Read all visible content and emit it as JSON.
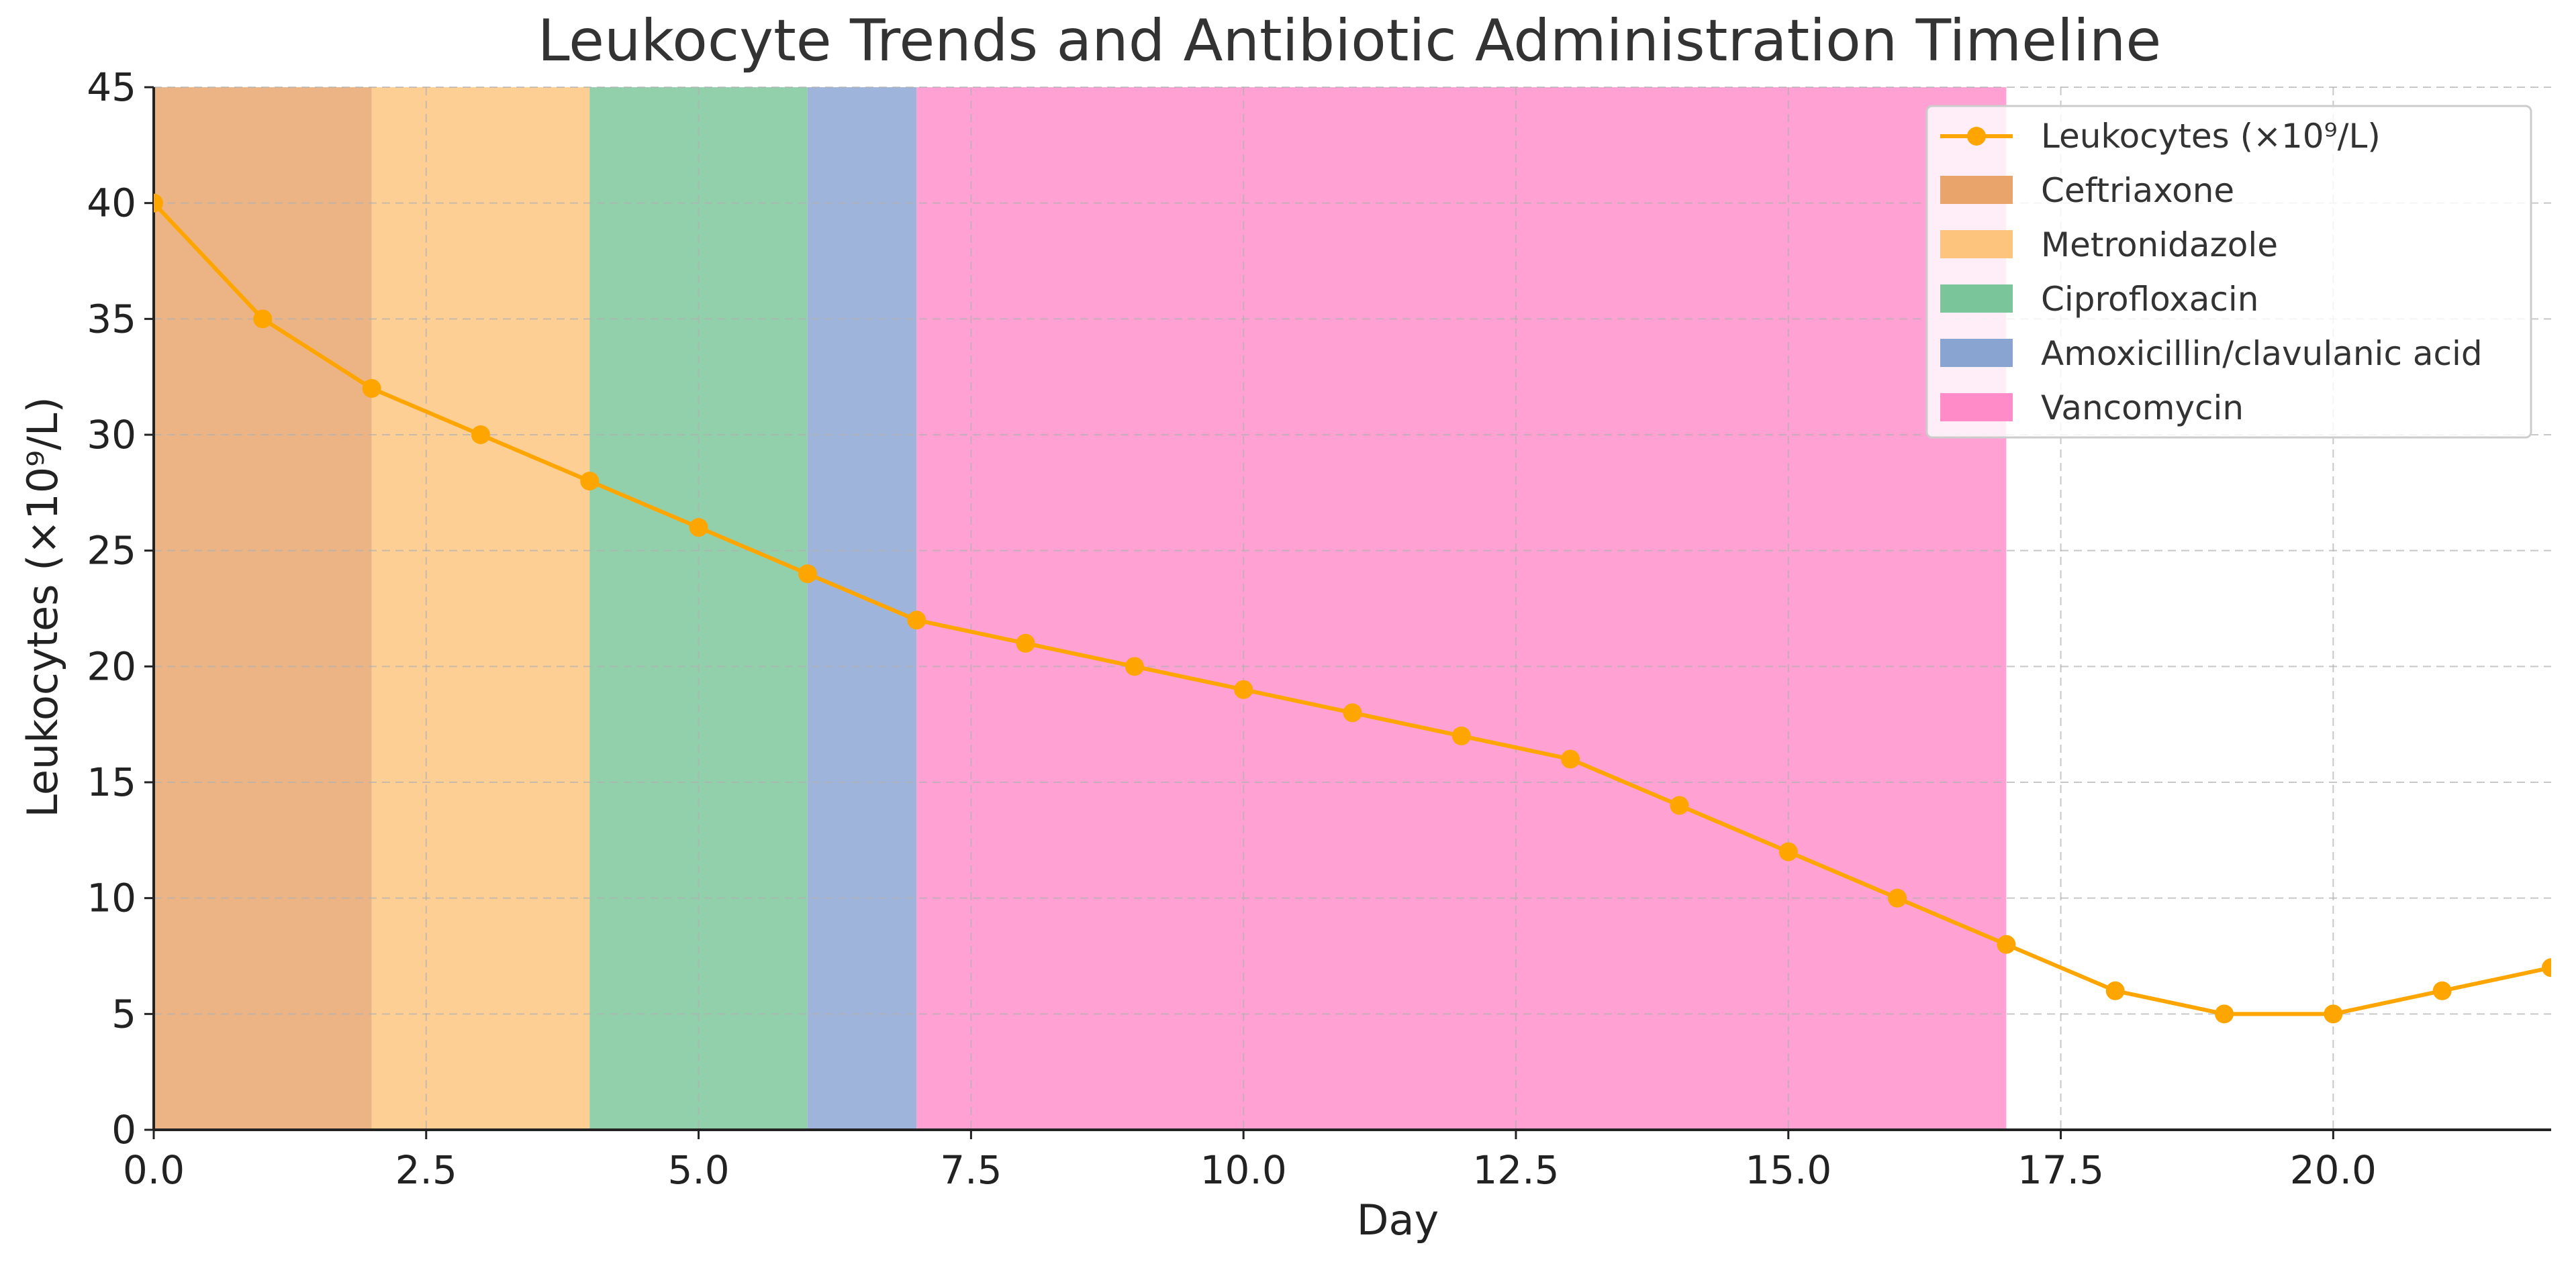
{
  "chart_data": {
    "type": "line",
    "title": "Leukocyte Trends and Antibiotic Administration Timeline",
    "xlabel": "Day",
    "ylabel": "Leukocytes (×10⁹/L)",
    "xlim": [
      0,
      22
    ],
    "ylim": [
      0,
      45
    ],
    "xticks": [
      "0.0",
      "2.5",
      "5.0",
      "7.5",
      "10.0",
      "12.5",
      "15.0",
      "17.5",
      "20.0"
    ],
    "yticks": [
      "0",
      "5",
      "10",
      "15",
      "20",
      "25",
      "30",
      "35",
      "40",
      "45"
    ],
    "grid": true,
    "legend_position": "top-right",
    "series": [
      {
        "name": "Leukocytes (×10⁹/L)",
        "color": "#FFA500",
        "x": [
          0,
          1,
          2,
          3,
          4,
          5,
          6,
          7,
          8,
          9,
          10,
          11,
          12,
          13,
          14,
          15,
          16,
          17,
          18,
          19,
          20,
          21,
          22
        ],
        "y": [
          40,
          35,
          32,
          30,
          28,
          26,
          24,
          22,
          21,
          20,
          19,
          18,
          17,
          16,
          14,
          12,
          10,
          8,
          6,
          5,
          5,
          6,
          7
        ]
      }
    ],
    "bands": [
      {
        "name": "Ceftriaxone",
        "start": 0,
        "end": 2,
        "color": "#E8A46A"
      },
      {
        "name": "Metronidazole",
        "start": 2,
        "end": 4,
        "color": "#FDC47E"
      },
      {
        "name": "Ciprofloxacin",
        "start": 4,
        "end": 6,
        "color": "#7AC69A"
      },
      {
        "name": "Amoxicillin/clavulanic acid",
        "start": 6,
        "end": 7,
        "color": "#8AA4D2"
      },
      {
        "name": "Vancomycin",
        "start": 7,
        "end": 17,
        "color": "#FF8CC8"
      }
    ]
  }
}
